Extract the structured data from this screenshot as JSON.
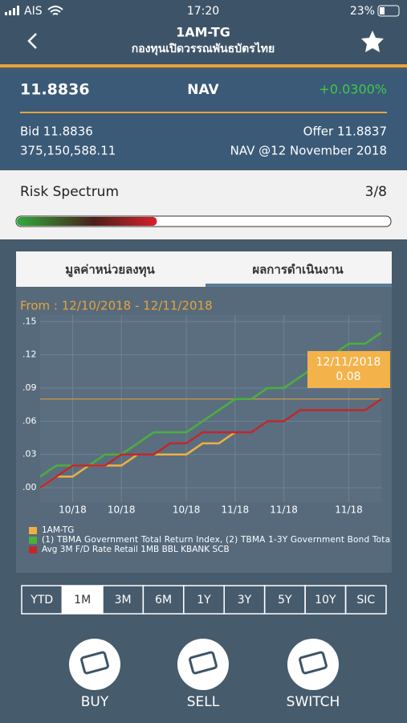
{
  "status": {
    "carrier": "AIS",
    "time": "17:20",
    "battery": "23%"
  },
  "header": {
    "title": "1AM-TG",
    "subtitle": "กองทุนเปิดวรรณพันธบัตรไทย"
  },
  "nav": {
    "value": "11.8836",
    "label": "NAV",
    "change": "+0.0300%",
    "bid": "Bid 11.8836",
    "offer": "Offer 11.8837",
    "volume": "375,150,588.11",
    "date": "NAV @12 November 2018"
  },
  "risk": {
    "label": "Risk Spectrum",
    "value_label": "3/8",
    "level": 3,
    "levels": 8
  },
  "tabs": [
    {
      "label": "มูลค่าหน่วยลงทุน",
      "active": false
    },
    {
      "label": "ผลการดำเนินงาน",
      "active": true
    }
  ],
  "date_range": "From : 12/10/2018 - 12/11/2018",
  "chart_data": {
    "type": "line",
    "categories": [
      null,
      null,
      "10/18",
      null,
      null,
      "10/18",
      null,
      null,
      null,
      "10/18",
      null,
      null,
      "11/18",
      null,
      null,
      "11/18",
      null,
      null,
      null,
      "11/18",
      null,
      null
    ],
    "series": [
      {
        "name": "1AM-TG",
        "color": "#f0b040",
        "values": [
          0.0,
          0.01,
          0.01,
          0.02,
          0.02,
          0.02,
          0.03,
          0.03,
          0.03,
          0.03,
          0.04,
          0.04,
          0.05,
          null,
          null,
          null,
          null,
          null,
          null,
          null,
          null,
          null
        ]
      },
      {
        "name": "(1) TBMA Government Total Return Index, (2) TBMA 1-3Y Government Bond Tota",
        "color": "#4caf3c",
        "values": [
          0.01,
          0.02,
          0.02,
          0.02,
          0.03,
          0.03,
          0.04,
          0.05,
          0.05,
          0.05,
          0.06,
          0.07,
          0.08,
          0.08,
          0.09,
          0.09,
          0.1,
          0.11,
          0.12,
          0.13,
          0.13,
          0.14
        ]
      },
      {
        "name": "Avg 3M F/D Rate Retail 1MB BBL KBANK SCB",
        "color": "#c0282c",
        "values": [
          0.0,
          0.01,
          0.02,
          0.02,
          0.02,
          0.03,
          0.03,
          0.03,
          0.04,
          0.04,
          0.05,
          0.05,
          0.05,
          0.05,
          0.06,
          0.06,
          0.07,
          0.07,
          0.07,
          0.07,
          0.07,
          0.08
        ]
      }
    ],
    "ylim": [
      -0.013,
      0.156
    ],
    "yticks": [
      {
        "value": 0.15,
        "label": ".15"
      },
      {
        "value": 0.12,
        "label": ".12"
      },
      {
        "value": 0.09,
        "label": ".09"
      },
      {
        "value": 0.06,
        "label": ".06"
      },
      {
        "value": 0.03,
        "label": ".03"
      },
      {
        "value": 0,
        "label": ".00"
      }
    ],
    "grid": true,
    "tooltip": {
      "date": "12/11/2018",
      "value": 0.08
    }
  },
  "periods": [
    {
      "label": "YTD",
      "active": false
    },
    {
      "label": "1M",
      "active": true
    },
    {
      "label": "3M",
      "active": false
    },
    {
      "label": "6M",
      "active": false
    },
    {
      "label": "1Y",
      "active": false
    },
    {
      "label": "3Y",
      "active": false
    },
    {
      "label": "5Y",
      "active": false
    },
    {
      "label": "10Y",
      "active": false
    },
    {
      "label": "SIC",
      "active": false
    }
  ],
  "actions": [
    "BUY",
    "SELL",
    "SWITCH"
  ]
}
